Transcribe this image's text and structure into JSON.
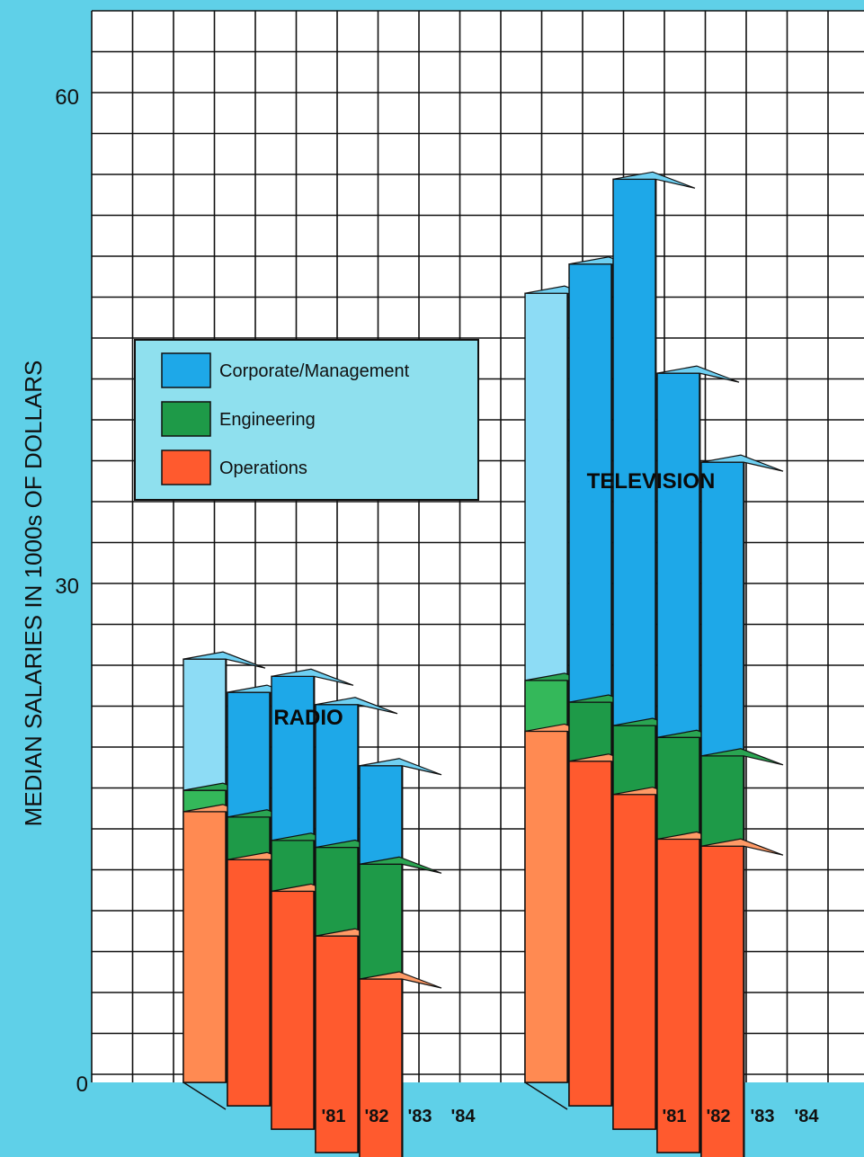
{
  "chart_data": {
    "type": "bar",
    "subtype": "stacked-3d",
    "ylabel": "MEDIAN SALARIES IN 1000s OF DOLLARS",
    "y_ticks": [
      "0",
      "30",
      "60"
    ],
    "ylim": [
      0,
      60
    ],
    "grid": true,
    "legend": {
      "placement": "left",
      "items": [
        {
          "label": "Corporate/Management",
          "color": "#1ea8e8"
        },
        {
          "label": "Engineering",
          "color": "#1e9a48"
        },
        {
          "label": "Operations",
          "color": "#ff5a2e"
        }
      ]
    },
    "groups": [
      {
        "name": "RADIO",
        "categories": [
          "",
          "'81",
          "'82",
          "'83",
          "'84"
        ],
        "series": [
          {
            "name": "Operations",
            "values": [
              16.5,
              15.0,
              14.5,
              13.2,
              12.0
            ]
          },
          {
            "name": "Engineering",
            "values": [
              17.8,
              17.6,
              17.6,
              18.6,
              19.0
            ]
          },
          {
            "name": "Corporate/Management",
            "values": [
              25.8,
              25.2,
              27.6,
              27.3,
              25.0
            ]
          }
        ]
      },
      {
        "name": "TELEVISION",
        "categories": [
          "",
          "'81",
          "'82",
          "'83",
          "'84"
        ],
        "series": [
          {
            "name": "Operations",
            "values": [
              21.4,
              21.0,
              20.4,
              19.1,
              20.1
            ]
          },
          {
            "name": "Engineering",
            "values": [
              24.5,
              24.6,
              24.6,
              25.3,
              25.6
            ]
          },
          {
            "name": "Corporate/Management",
            "values": [
              48.1,
              51.3,
              57.9,
              47.5,
              43.5
            ]
          }
        ]
      }
    ]
  }
}
